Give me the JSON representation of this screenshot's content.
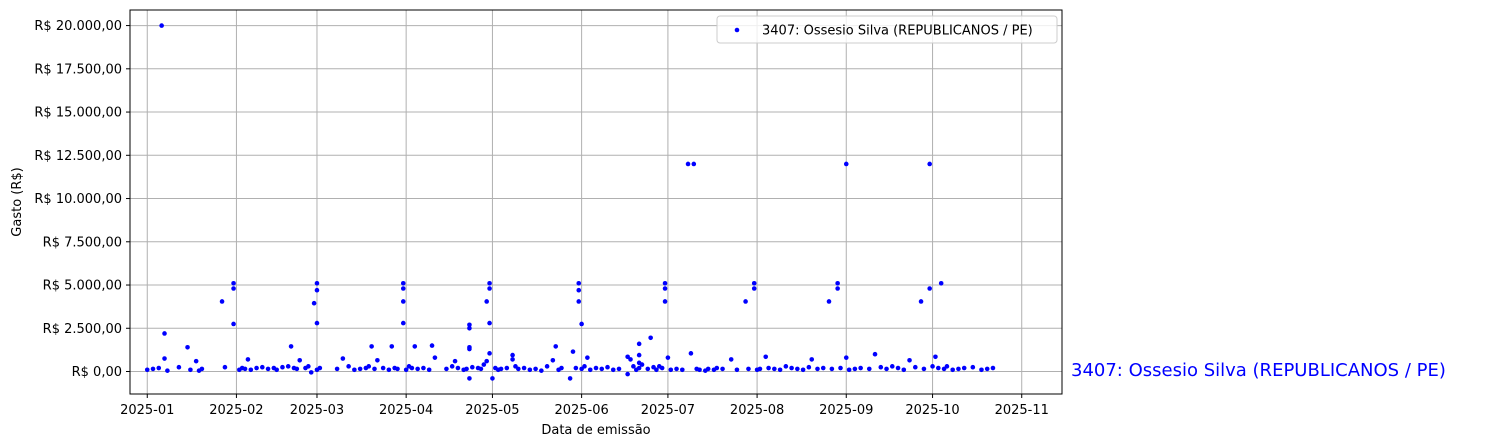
{
  "chart_data": {
    "type": "scatter",
    "xlabel": "Data de emissão",
    "ylabel": "Gasto (R$)",
    "grid": true,
    "legend_position": "top-right",
    "xlim": [
      "2024-12-26",
      "2025-11-15"
    ],
    "ylim": [
      -1300,
      20900
    ],
    "x_ticks": [
      "2025-01",
      "2025-02",
      "2025-03",
      "2025-04",
      "2025-05",
      "2025-06",
      "2025-07",
      "2025-08",
      "2025-09",
      "2025-10",
      "2025-11"
    ],
    "y_ticks": [
      {
        "value": 0,
        "label": "R$ 0,00"
      },
      {
        "value": 2500,
        "label": "R$ 2.500,00"
      },
      {
        "value": 5000,
        "label": "R$ 5.000,00"
      },
      {
        "value": 7500,
        "label": "R$ 7.500,00"
      },
      {
        "value": 10000,
        "label": "R$ 10.000,00"
      },
      {
        "value": 12500,
        "label": "R$ 12.500,00"
      },
      {
        "value": 15000,
        "label": "R$ 15.000,00"
      },
      {
        "value": 17500,
        "label": "R$ 17.500,00"
      },
      {
        "value": 20000,
        "label": "R$ 20.000,00"
      }
    ],
    "series": [
      {
        "name": "3407: Ossesio Silva (REPUBLICANOS / PE)",
        "color": "#0000ff",
        "points": [
          [
            "2025-01-01",
            100
          ],
          [
            "2025-01-03",
            150
          ],
          [
            "2025-01-05",
            200
          ],
          [
            "2025-01-06",
            20000
          ],
          [
            "2025-01-07",
            2200
          ],
          [
            "2025-01-07",
            750
          ],
          [
            "2025-01-08",
            50
          ],
          [
            "2025-01-12",
            250
          ],
          [
            "2025-01-15",
            1400
          ],
          [
            "2025-01-16",
            100
          ],
          [
            "2025-01-18",
            600
          ],
          [
            "2025-01-19",
            50
          ],
          [
            "2025-01-20",
            150
          ],
          [
            "2025-01-27",
            4050
          ],
          [
            "2025-01-28",
            250
          ],
          [
            "2025-01-31",
            5100
          ],
          [
            "2025-01-31",
            4800
          ],
          [
            "2025-01-31",
            2750
          ],
          [
            "2025-02-02",
            100
          ],
          [
            "2025-02-03",
            200
          ],
          [
            "2025-02-04",
            150
          ],
          [
            "2025-02-05",
            700
          ],
          [
            "2025-02-06",
            100
          ],
          [
            "2025-02-08",
            200
          ],
          [
            "2025-02-10",
            250
          ],
          [
            "2025-02-12",
            150
          ],
          [
            "2025-02-14",
            200
          ],
          [
            "2025-02-15",
            100
          ],
          [
            "2025-02-17",
            250
          ],
          [
            "2025-02-19",
            300
          ],
          [
            "2025-02-20",
            1450
          ],
          [
            "2025-02-21",
            200
          ],
          [
            "2025-02-22",
            150
          ],
          [
            "2025-02-23",
            650
          ],
          [
            "2025-02-25",
            200
          ],
          [
            "2025-02-26",
            300
          ],
          [
            "2025-02-27",
            -50
          ],
          [
            "2025-02-28",
            3950
          ],
          [
            "2025-03-01",
            5100
          ],
          [
            "2025-03-01",
            4700
          ],
          [
            "2025-03-01",
            2800
          ],
          [
            "2025-03-01",
            100
          ],
          [
            "2025-03-02",
            200
          ],
          [
            "2025-03-08",
            150
          ],
          [
            "2025-03-10",
            750
          ],
          [
            "2025-03-12",
            300
          ],
          [
            "2025-03-14",
            100
          ],
          [
            "2025-03-16",
            150
          ],
          [
            "2025-03-18",
            200
          ],
          [
            "2025-03-19",
            300
          ],
          [
            "2025-03-20",
            1450
          ],
          [
            "2025-03-21",
            150
          ],
          [
            "2025-03-22",
            650
          ],
          [
            "2025-03-24",
            200
          ],
          [
            "2025-03-26",
            100
          ],
          [
            "2025-03-27",
            1450
          ],
          [
            "2025-03-28",
            200
          ],
          [
            "2025-03-29",
            150
          ],
          [
            "2025-03-31",
            5100
          ],
          [
            "2025-03-31",
            4800
          ],
          [
            "2025-03-31",
            4050
          ],
          [
            "2025-03-31",
            2800
          ],
          [
            "2025-04-01",
            100
          ],
          [
            "2025-04-02",
            300
          ],
          [
            "2025-04-03",
            200
          ],
          [
            "2025-04-04",
            1450
          ],
          [
            "2025-04-05",
            150
          ],
          [
            "2025-04-07",
            200
          ],
          [
            "2025-04-09",
            100
          ],
          [
            "2025-04-10",
            1500
          ],
          [
            "2025-04-11",
            800
          ],
          [
            "2025-04-15",
            150
          ],
          [
            "2025-04-17",
            300
          ],
          [
            "2025-04-18",
            600
          ],
          [
            "2025-04-19",
            200
          ],
          [
            "2025-04-21",
            100
          ],
          [
            "2025-04-22",
            150
          ],
          [
            "2025-04-23",
            2700
          ],
          [
            "2025-04-23",
            2500
          ],
          [
            "2025-04-23",
            1400
          ],
          [
            "2025-04-23",
            1300
          ],
          [
            "2025-04-23",
            -400
          ],
          [
            "2025-04-24",
            250
          ],
          [
            "2025-04-26",
            200
          ],
          [
            "2025-04-27",
            150
          ],
          [
            "2025-04-28",
            400
          ],
          [
            "2025-04-29",
            600
          ],
          [
            "2025-04-30",
            1050
          ],
          [
            "2025-04-30",
            5100
          ],
          [
            "2025-04-30",
            4800
          ],
          [
            "2025-04-29",
            4050
          ],
          [
            "2025-04-30",
            2800
          ],
          [
            "2025-05-01",
            -400
          ],
          [
            "2025-05-02",
            200
          ],
          [
            "2025-05-03",
            100
          ],
          [
            "2025-05-04",
            150
          ],
          [
            "2025-05-06",
            200
          ],
          [
            "2025-05-08",
            950
          ],
          [
            "2025-05-08",
            700
          ],
          [
            "2025-05-09",
            300
          ],
          [
            "2025-05-10",
            150
          ],
          [
            "2025-05-12",
            200
          ],
          [
            "2025-05-14",
            100
          ],
          [
            "2025-05-16",
            150
          ],
          [
            "2025-05-18",
            50
          ],
          [
            "2025-05-20",
            300
          ],
          [
            "2025-05-22",
            650
          ],
          [
            "2025-05-23",
            1450
          ],
          [
            "2025-05-24",
            100
          ],
          [
            "2025-05-25",
            200
          ],
          [
            "2025-05-28",
            -400
          ],
          [
            "2025-05-29",
            1150
          ],
          [
            "2025-05-30",
            200
          ],
          [
            "2025-05-31",
            4050
          ],
          [
            "2025-05-31",
            5100
          ],
          [
            "2025-05-31",
            4700
          ],
          [
            "2025-06-01",
            2750
          ],
          [
            "2025-06-01",
            150
          ],
          [
            "2025-06-02",
            300
          ],
          [
            "2025-06-03",
            800
          ],
          [
            "2025-06-04",
            100
          ],
          [
            "2025-06-06",
            200
          ],
          [
            "2025-06-08",
            150
          ],
          [
            "2025-06-10",
            250
          ],
          [
            "2025-06-12",
            100
          ],
          [
            "2025-06-14",
            150
          ],
          [
            "2025-06-17",
            850
          ],
          [
            "2025-06-17",
            -150
          ],
          [
            "2025-06-18",
            700
          ],
          [
            "2025-06-19",
            300
          ],
          [
            "2025-06-20",
            100
          ],
          [
            "2025-06-21",
            1600
          ],
          [
            "2025-06-21",
            950
          ],
          [
            "2025-06-21",
            500
          ],
          [
            "2025-06-21",
            200
          ],
          [
            "2025-06-22",
            400
          ],
          [
            "2025-06-24",
            150
          ],
          [
            "2025-06-25",
            1950
          ],
          [
            "2025-06-26",
            250
          ],
          [
            "2025-06-27",
            100
          ],
          [
            "2025-06-28",
            300
          ],
          [
            "2025-06-29",
            200
          ],
          [
            "2025-06-30",
            5100
          ],
          [
            "2025-06-30",
            4800
          ],
          [
            "2025-06-30",
            4050
          ],
          [
            "2025-07-01",
            800
          ],
          [
            "2025-07-02",
            100
          ],
          [
            "2025-07-04",
            150
          ],
          [
            "2025-07-06",
            100
          ],
          [
            "2025-07-08",
            12000
          ],
          [
            "2025-07-09",
            1050
          ],
          [
            "2025-07-10",
            12000
          ],
          [
            "2025-07-11",
            150
          ],
          [
            "2025-07-12",
            100
          ],
          [
            "2025-07-14",
            50
          ],
          [
            "2025-07-15",
            150
          ],
          [
            "2025-07-17",
            100
          ],
          [
            "2025-07-18",
            200
          ],
          [
            "2025-07-20",
            150
          ],
          [
            "2025-07-23",
            700
          ],
          [
            "2025-07-25",
            100
          ],
          [
            "2025-07-28",
            4050
          ],
          [
            "2025-07-29",
            150
          ],
          [
            "2025-07-31",
            5100
          ],
          [
            "2025-07-31",
            4800
          ],
          [
            "2025-08-01",
            100
          ],
          [
            "2025-08-02",
            150
          ],
          [
            "2025-08-04",
            850
          ],
          [
            "2025-08-05",
            200
          ],
          [
            "2025-08-07",
            150
          ],
          [
            "2025-08-09",
            100
          ],
          [
            "2025-08-11",
            300
          ],
          [
            "2025-08-13",
            200
          ],
          [
            "2025-08-15",
            150
          ],
          [
            "2025-08-17",
            100
          ],
          [
            "2025-08-19",
            250
          ],
          [
            "2025-08-20",
            700
          ],
          [
            "2025-08-22",
            150
          ],
          [
            "2025-08-24",
            200
          ],
          [
            "2025-08-26",
            4050
          ],
          [
            "2025-08-27",
            150
          ],
          [
            "2025-08-29",
            5100
          ],
          [
            "2025-08-29",
            4800
          ],
          [
            "2025-08-30",
            200
          ],
          [
            "2025-09-01",
            12000
          ],
          [
            "2025-09-01",
            800
          ],
          [
            "2025-09-02",
            100
          ],
          [
            "2025-09-04",
            150
          ],
          [
            "2025-09-06",
            200
          ],
          [
            "2025-09-09",
            150
          ],
          [
            "2025-09-11",
            1000
          ],
          [
            "2025-09-13",
            250
          ],
          [
            "2025-09-15",
            150
          ],
          [
            "2025-09-17",
            300
          ],
          [
            "2025-09-19",
            200
          ],
          [
            "2025-09-21",
            100
          ],
          [
            "2025-09-23",
            650
          ],
          [
            "2025-09-25",
            250
          ],
          [
            "2025-09-27",
            4050
          ],
          [
            "2025-09-28",
            150
          ],
          [
            "2025-09-30",
            12000
          ],
          [
            "2025-09-30",
            4800
          ],
          [
            "2025-10-01",
            300
          ],
          [
            "2025-10-02",
            850
          ],
          [
            "2025-10-03",
            200
          ],
          [
            "2025-10-04",
            5100
          ],
          [
            "2025-10-05",
            150
          ],
          [
            "2025-10-06",
            300
          ],
          [
            "2025-10-08",
            100
          ],
          [
            "2025-10-10",
            150
          ],
          [
            "2025-10-12",
            200
          ],
          [
            "2025-10-15",
            250
          ],
          [
            "2025-10-18",
            100
          ],
          [
            "2025-10-20",
            150
          ],
          [
            "2025-10-22",
            200
          ]
        ]
      }
    ]
  },
  "side_label": "3407: Ossesio Silva (REPUBLICANOS / PE)",
  "colors": {
    "series": "#0000ff",
    "grid": "#b0b0b0"
  }
}
